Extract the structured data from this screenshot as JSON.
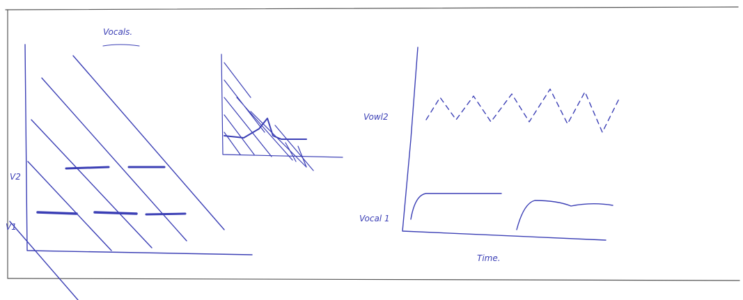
{
  "sketch": {
    "title": "Vocals.",
    "left_panel": {
      "labels": [
        "V2",
        "V1"
      ]
    },
    "right_panel": {
      "upper_label": "Vowl2",
      "lower_label": "Vocal 1",
      "x_label": "Time."
    }
  }
}
